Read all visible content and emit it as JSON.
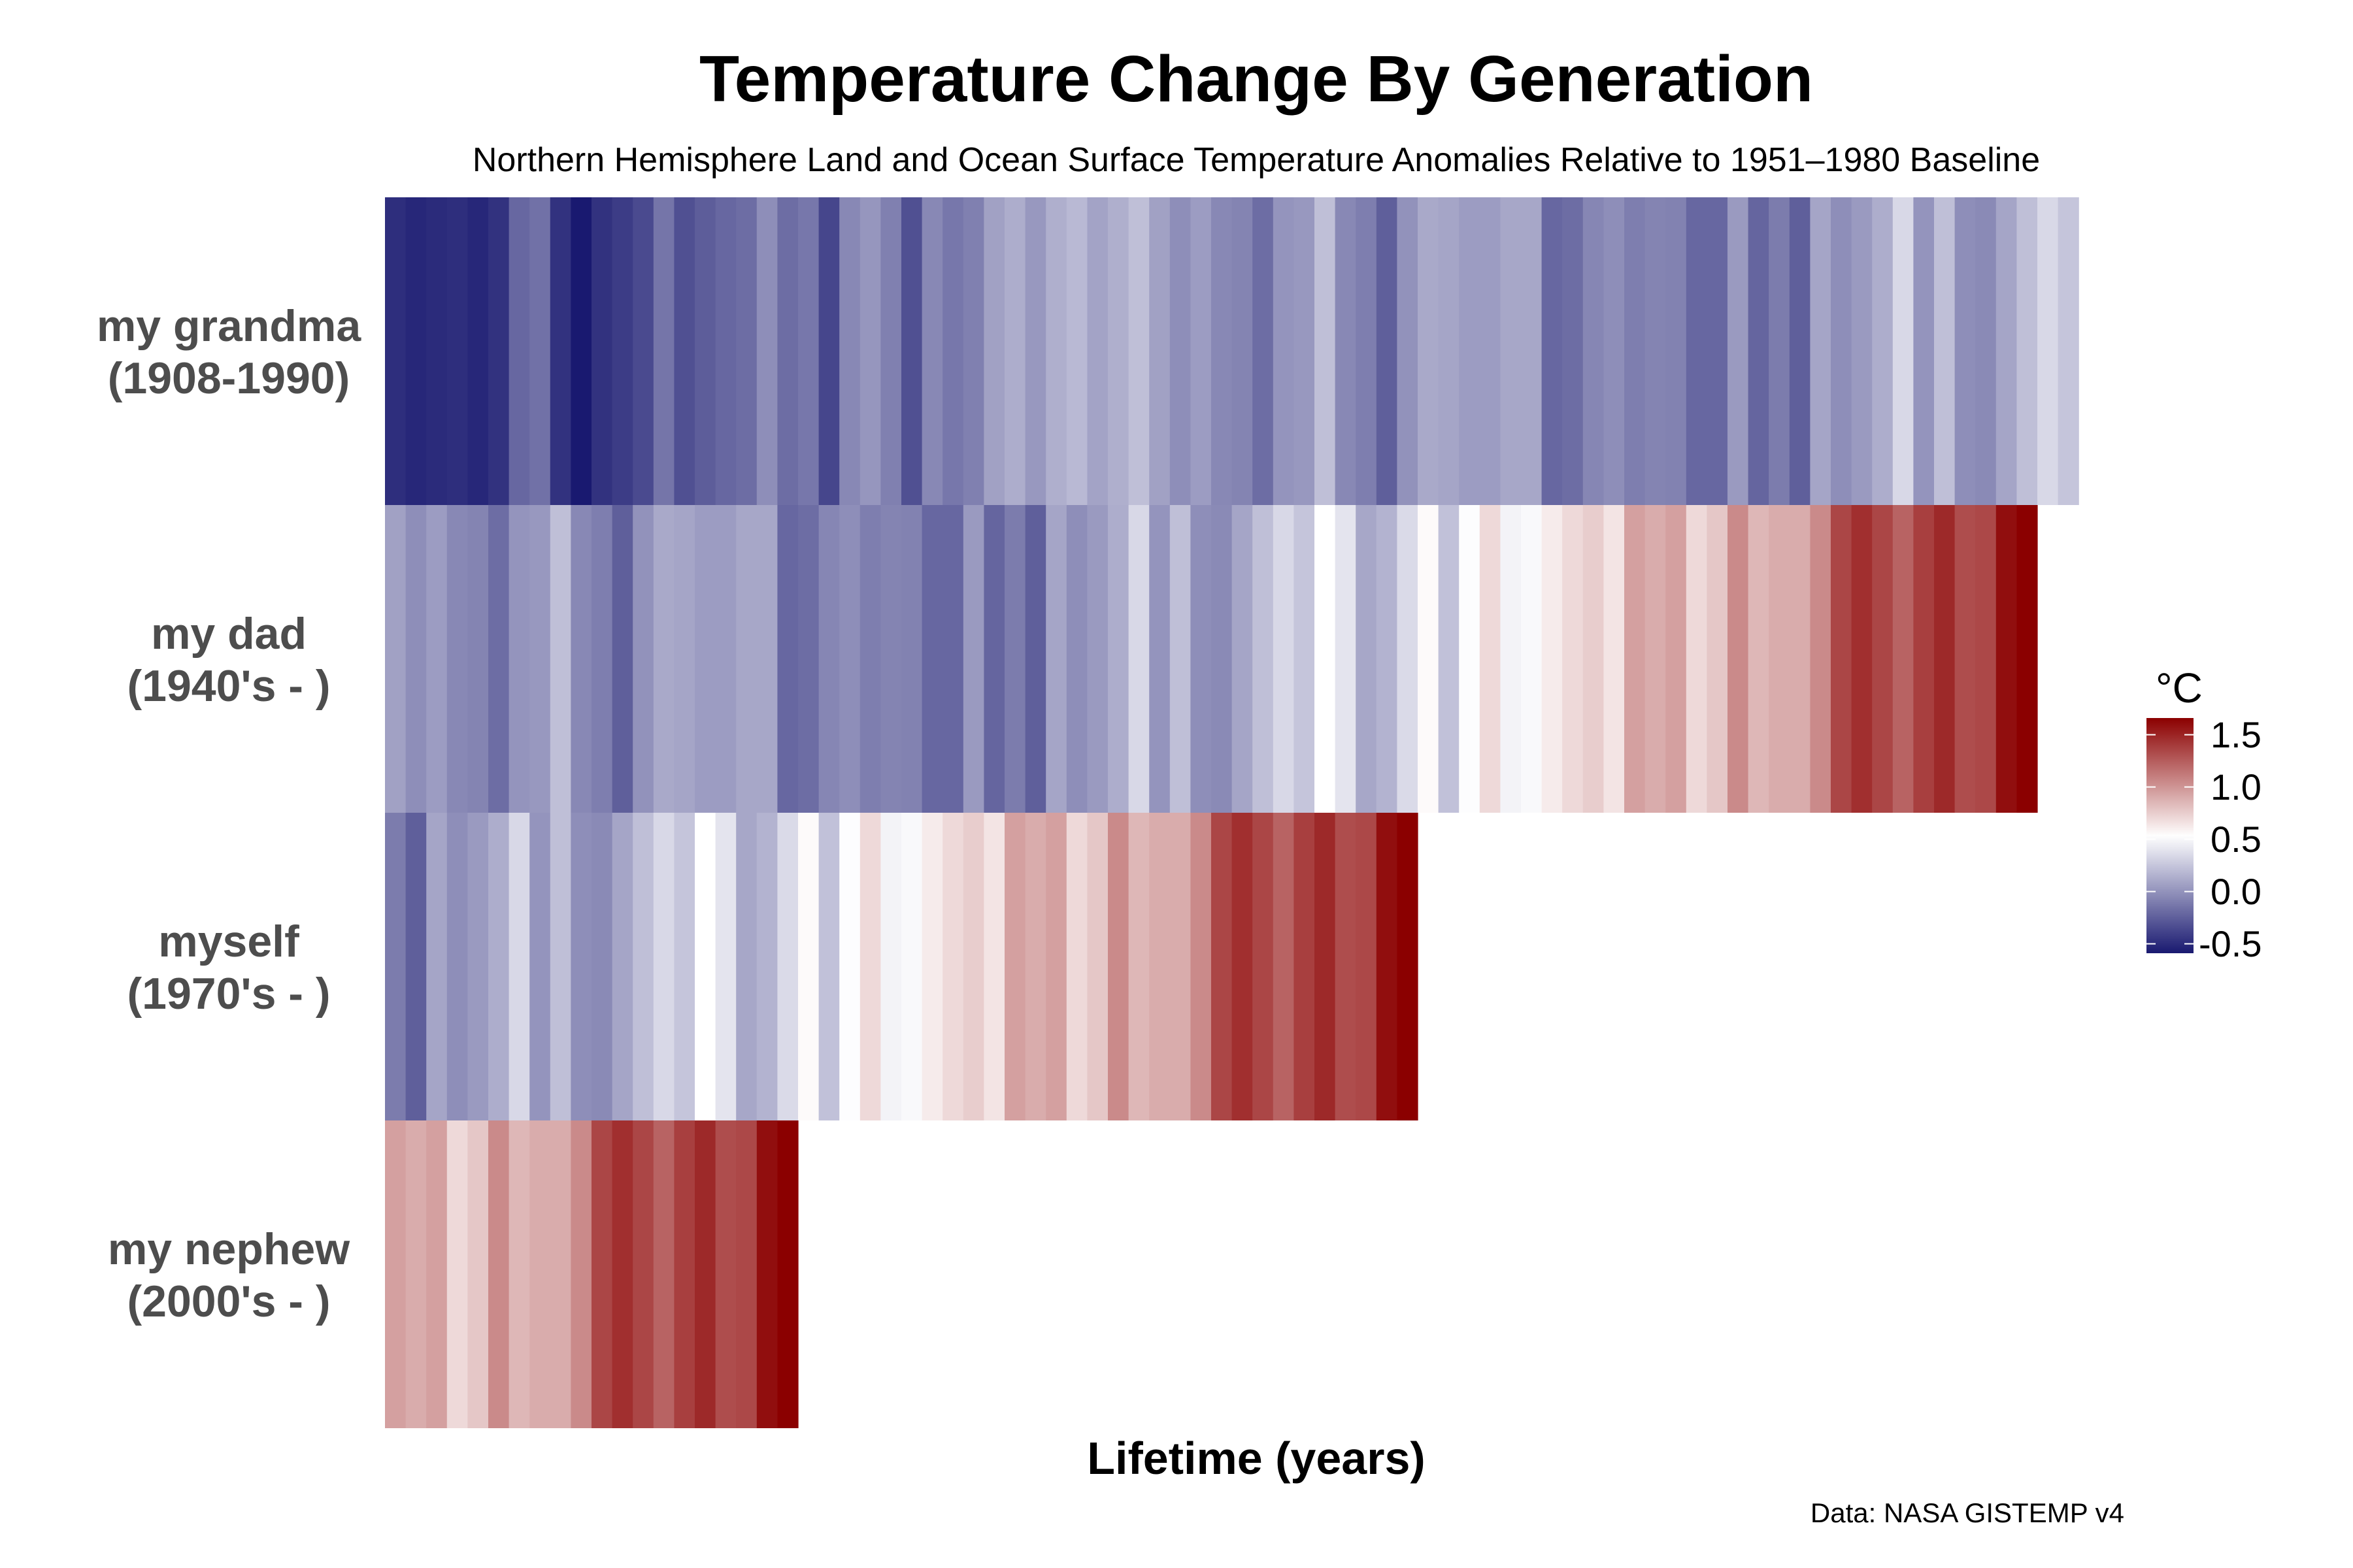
{
  "chart_data": {
    "type": "heatmap",
    "title": "Temperature Change By Generation",
    "subtitle": "Northern Hemisphere Land and Ocean Surface Temperature Anomalies Relative to 1951–1980 Baseline",
    "xlabel": "Lifetime (years)",
    "ylabel": "",
    "caption": "Data: NASA GISTEMP v4",
    "grid": false,
    "legend": {
      "title": "°C",
      "placement": "right",
      "ticks": [
        1.5,
        1.0,
        0.5,
        0.0,
        -0.5
      ],
      "tick_labels": [
        "1.5",
        "1.0",
        "0.5",
        "0.0",
        "-0.5"
      ],
      "limits": [
        -0.59,
        1.66
      ],
      "low_color": "#191970",
      "mid_color": "#FFFFFF",
      "mid_value": 0.53,
      "high_color": "#8B0000"
    },
    "rows": [
      {
        "label_line1": "my grandma",
        "label_line2": "(1908-1990)",
        "values": [
          -0.49,
          -0.52,
          -0.5,
          -0.49,
          -0.52,
          -0.47,
          -0.21,
          -0.16,
          -0.47,
          -0.6,
          -0.47,
          -0.42,
          -0.35,
          -0.14,
          -0.32,
          -0.26,
          -0.21,
          -0.18,
          -0.02,
          -0.18,
          -0.13,
          -0.37,
          -0.05,
          0.02,
          -0.09,
          -0.32,
          -0.05,
          -0.13,
          -0.09,
          0.07,
          0.13,
          0.03,
          0.14,
          0.19,
          0.08,
          0.14,
          0.22,
          0.07,
          -0.02,
          0.05,
          -0.05,
          -0.07,
          -0.18,
          0.01,
          0.03,
          0.22,
          -0.05,
          -0.1,
          -0.25,
          0.0,
          0.11,
          0.09,
          0.05,
          0.05,
          0.1,
          0.1,
          -0.21,
          -0.18,
          -0.06,
          -0.02,
          -0.1,
          -0.07,
          -0.08,
          -0.21,
          -0.21,
          0.04,
          -0.22,
          -0.11,
          -0.25,
          0.09,
          -0.02,
          0.04,
          0.13,
          0.34,
          0.01,
          0.22,
          -0.02,
          -0.04,
          0.09,
          0.22,
          0.34,
          0.25
        ]
      },
      {
        "label_line1": "my dad",
        "label_line2": "(1940's - )",
        "values": [
          0.07,
          -0.02,
          0.05,
          -0.05,
          -0.07,
          -0.18,
          0.01,
          0.03,
          0.22,
          -0.05,
          -0.1,
          -0.25,
          0.0,
          0.11,
          0.09,
          0.05,
          0.05,
          0.1,
          0.1,
          -0.21,
          -0.18,
          -0.06,
          -0.02,
          -0.1,
          -0.07,
          -0.08,
          -0.21,
          -0.21,
          0.04,
          -0.22,
          -0.11,
          -0.25,
          0.09,
          -0.02,
          0.04,
          0.13,
          0.34,
          0.01,
          0.22,
          -0.02,
          -0.04,
          0.09,
          0.22,
          0.34,
          0.25,
          0.53,
          0.4,
          0.1,
          0.16,
          0.35,
          0.55,
          0.23,
          0.52,
          0.7,
          0.47,
          0.5,
          0.62,
          0.7,
          0.75,
          0.65,
          0.95,
          0.9,
          0.95,
          0.7,
          0.78,
          1.05,
          0.85,
          0.9,
          0.9,
          1.05,
          1.35,
          1.45,
          1.35,
          1.22,
          1.38,
          1.48,
          1.32,
          1.34,
          1.6,
          1.66
        ]
      },
      {
        "label_line1": "myself",
        "label_line2": "(1970's - )",
        "values": [
          -0.11,
          -0.25,
          0.09,
          -0.02,
          0.04,
          0.13,
          0.34,
          0.01,
          0.22,
          -0.02,
          -0.04,
          0.09,
          0.22,
          0.34,
          0.25,
          0.53,
          0.4,
          0.1,
          0.16,
          0.35,
          0.55,
          0.23,
          0.52,
          0.7,
          0.47,
          0.5,
          0.62,
          0.7,
          0.75,
          0.65,
          0.95,
          0.9,
          0.95,
          0.7,
          0.78,
          1.05,
          0.85,
          0.9,
          0.9,
          1.05,
          1.35,
          1.45,
          1.35,
          1.22,
          1.38,
          1.48,
          1.32,
          1.34,
          1.6,
          1.66
        ]
      },
      {
        "label_line1": "my nephew",
        "label_line2": "(2000's - )",
        "values": [
          0.95,
          0.9,
          0.95,
          0.7,
          0.78,
          1.05,
          0.85,
          0.9,
          0.9,
          1.05,
          1.35,
          1.45,
          1.35,
          1.22,
          1.38,
          1.48,
          1.32,
          1.34,
          1.6,
          1.66
        ]
      }
    ]
  }
}
